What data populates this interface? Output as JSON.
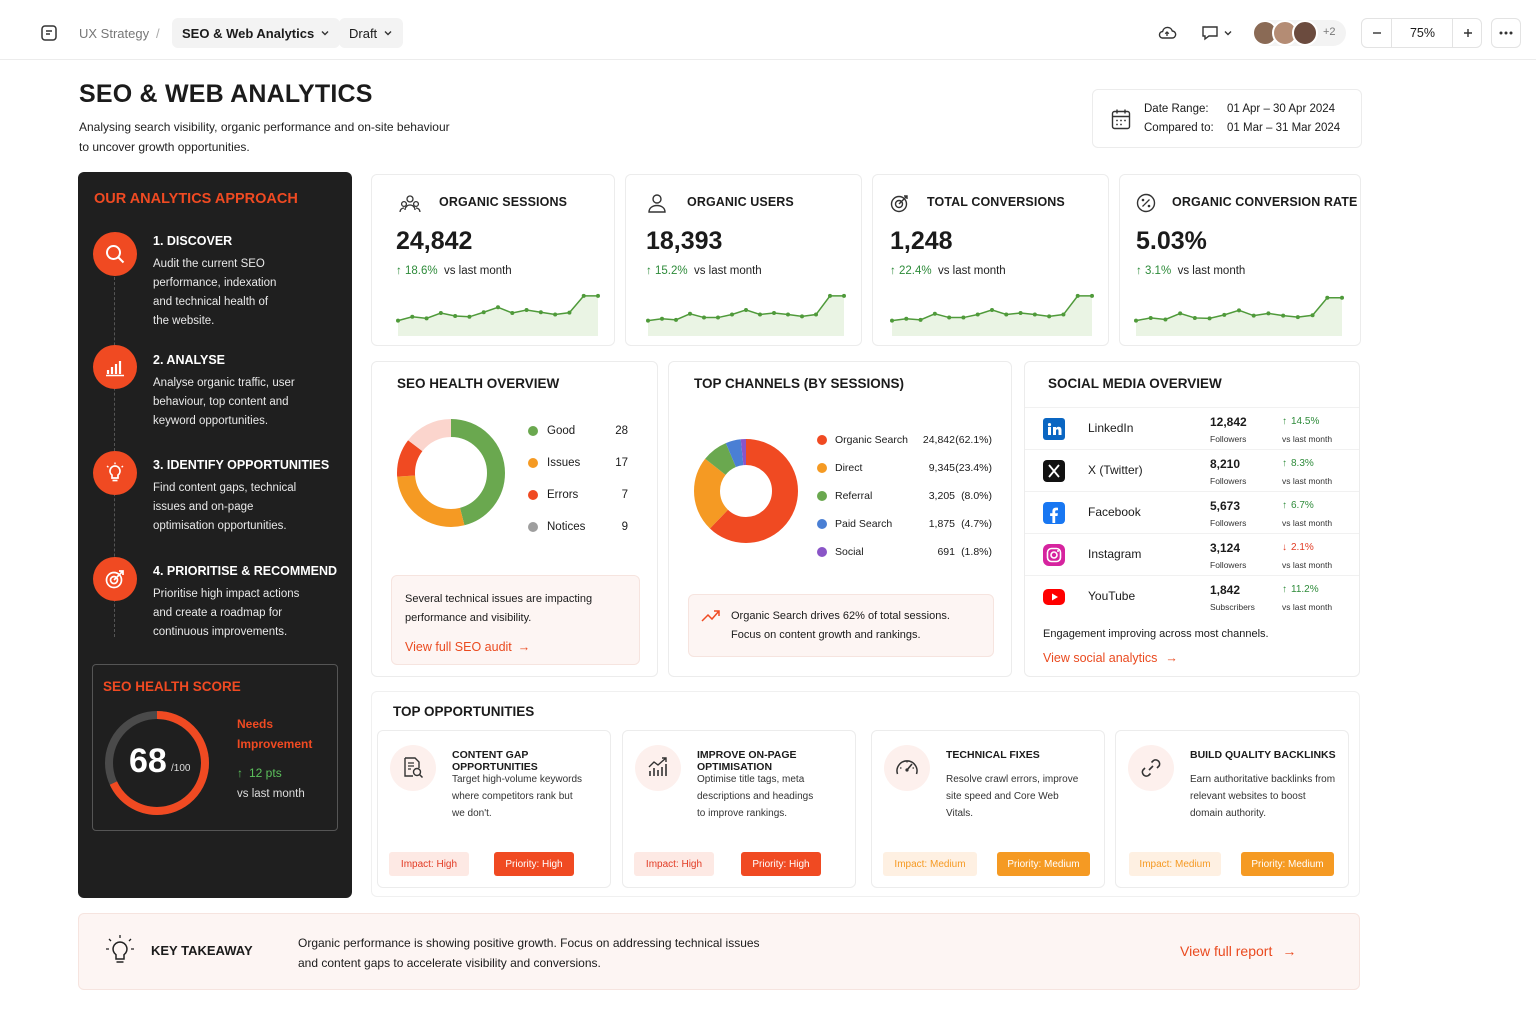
{
  "topbar": {
    "breadcrumb_root": "UX Strategy",
    "breadcrumb_sep": "/",
    "file_name": "SEO & Web Analytics",
    "status": "Draft",
    "extra_users": "+2",
    "zoom": "75%"
  },
  "header": {
    "title": "SEO & WEB ANALYTICS",
    "subtitle_line1": "Analysing search visibility, organic performance and on-site behaviour",
    "subtitle_line2": "to uncover growth opportunities.",
    "date_range_label": "Date Range:",
    "date_range_value": "01 Apr – 30 Apr 2024",
    "compared_label": "Compared to:",
    "compared_value": "01 Mar – 31 Mar 2024"
  },
  "approach": {
    "title": "OUR ANALYTICS APPROACH",
    "steps": [
      {
        "title": "1. DISCOVER",
        "lines": [
          "Audit the current SEO",
          "performance, indexation",
          "and technical health of",
          "the website."
        ]
      },
      {
        "title": "2. ANALYSE",
        "lines": [
          "Analyse organic traffic, user",
          "behaviour, top content and",
          "keyword opportunities."
        ]
      },
      {
        "title": "3. IDENTIFY OPPORTUNITIES",
        "lines": [
          "Find content gaps, technical",
          "issues and on-page",
          "optimisation opportunities."
        ]
      },
      {
        "title": "4. PRIORITISE & RECOMMEND",
        "lines": [
          "Prioritise high impact actions",
          "and create a roadmap for",
          "continuous improvements."
        ]
      }
    ],
    "health": {
      "title": "SEO HEALTH SCORE",
      "score": "68",
      "score_max": "/100",
      "score_fraction": 0.68,
      "status_line1": "Needs",
      "status_line2": "Improvement",
      "change": "12 pts",
      "change_label": "vs last month"
    }
  },
  "kpis": [
    {
      "title": "ORGANIC SESSIONS",
      "value": "24,842",
      "change": "18.6%",
      "label": "vs last month",
      "spark": [
        3,
        4,
        3.6,
        5,
        4.2,
        4,
        5.2,
        6.5,
        5,
        5.8,
        5.2,
        4.6,
        5.1,
        9.5,
        9.5
      ]
    },
    {
      "title": "ORGANIC USERS",
      "value": "18,393",
      "change": "15.2%",
      "label": "vs last month",
      "spark": [
        3,
        3.5,
        3.2,
        4.8,
        3.8,
        3.8,
        4.6,
        5.8,
        4.6,
        5,
        4.6,
        4.1,
        4.6,
        9.5,
        9.5
      ]
    },
    {
      "title": "TOTAL CONVERSIONS",
      "value": "1,248",
      "change": "22.4%",
      "label": "vs last month",
      "spark": [
        3,
        3.5,
        3.2,
        4.8,
        3.8,
        3.8,
        4.6,
        5.8,
        4.6,
        5,
        4.6,
        4.1,
        4.6,
        9.5,
        9.5
      ]
    },
    {
      "title": "ORGANIC CONVERSION RATE",
      "value": "5.03%",
      "change": "3.1%",
      "label": "vs last month",
      "spark": [
        3,
        3.7,
        3.3,
        4.9,
        3.7,
        3.6,
        4.5,
        5.7,
        4.3,
        4.9,
        4.3,
        3.9,
        4.4,
        9,
        9
      ]
    }
  ],
  "seo_health": {
    "title": "SEO HEALTH OVERVIEW",
    "items": [
      {
        "label": "Good",
        "value": 28,
        "color": "#6aa84f"
      },
      {
        "label": "Issues",
        "value": 17,
        "color": "#f59a23"
      },
      {
        "label": "Errors",
        "value": 7,
        "color": "#f04a22"
      },
      {
        "label": "Notices",
        "value": 9,
        "color": "#fbd5cd"
      }
    ],
    "note_line1": "Several technical issues are impacting",
    "note_line2": "performance and visibility.",
    "link": "View full SEO audit"
  },
  "channels": {
    "title": "TOP CHANNELS (BY SESSIONS)",
    "items": [
      {
        "label": "Organic Search",
        "value": "24,842",
        "pct": "(62.1%)",
        "share": 62.1,
        "color": "#f04a22"
      },
      {
        "label": "Direct",
        "value": "9,345",
        "pct": "(23.4%)",
        "share": 23.4,
        "color": "#f59a23"
      },
      {
        "label": "Referral",
        "value": "3,205",
        "pct": "(8.0%)",
        "share": 8.0,
        "color": "#6aa84f"
      },
      {
        "label": "Paid Search",
        "value": "1,875",
        "pct": "(4.7%)",
        "share": 4.7,
        "color": "#4a7fd4"
      },
      {
        "label": "Social",
        "value": "691",
        "pct": "(1.8%)",
        "share": 1.8,
        "color": "#8a55c7"
      }
    ],
    "note_line1": "Organic Search drives 62% of total sessions.",
    "note_line2": "Focus on content growth and rankings."
  },
  "social": {
    "title": "SOCIAL MEDIA OVERVIEW",
    "items": [
      {
        "name": "LinkedIn",
        "count": "12,842",
        "unit": "Followers",
        "change": "14.5%",
        "dir": "up",
        "label": "vs last month",
        "icon": "linkedin-icon",
        "color": "#0a66c2"
      },
      {
        "name": "X (Twitter)",
        "count": "8,210",
        "unit": "Followers",
        "change": "8.3%",
        "dir": "up",
        "label": "vs last month",
        "icon": "x-icon",
        "color": "#111111"
      },
      {
        "name": "Facebook",
        "count": "5,673",
        "unit": "Followers",
        "change": "6.7%",
        "dir": "up",
        "label": "vs last month",
        "icon": "facebook-icon",
        "color": "#1877f2"
      },
      {
        "name": "Instagram",
        "count": "3,124",
        "unit": "Followers",
        "change": "2.1%",
        "dir": "down",
        "label": "vs last month",
        "icon": "instagram-icon",
        "color": "#d6249f"
      },
      {
        "name": "YouTube",
        "count": "1,842",
        "unit": "Subscribers",
        "change": "11.2%",
        "dir": "up",
        "label": "vs last month",
        "icon": "youtube-icon",
        "color": "#ff0000"
      }
    ],
    "note": "Engagement improving across most channels.",
    "link": "View social analytics"
  },
  "opportunities": {
    "title": "TOP OPPORTUNITIES",
    "items": [
      {
        "title": "CONTENT GAP OPPORTUNITIES",
        "lines": [
          "Target high-volume keywords",
          "where competitors rank but",
          "we don't."
        ],
        "impact": "Impact: High",
        "priority": "Priority: High",
        "level": "high"
      },
      {
        "title": "IMPROVE ON-PAGE OPTIMISATION",
        "lines": [
          "Optimise title tags, meta",
          "descriptions and headings",
          "to improve rankings."
        ],
        "impact": "Impact: High",
        "priority": "Priority: High",
        "level": "high"
      },
      {
        "title": "TECHNICAL FIXES",
        "lines": [
          "Resolve crawl errors, improve",
          "site speed and Core Web",
          "Vitals."
        ],
        "impact": "Impact: Medium",
        "priority": "Priority: Medium",
        "level": "medium"
      },
      {
        "title": "BUILD QUALITY BACKLINKS",
        "lines": [
          "Earn authoritative backlinks from",
          "relevant websites to boost",
          "domain authority."
        ],
        "impact": "Impact: Medium",
        "priority": "Priority: Medium",
        "level": "medium"
      }
    ]
  },
  "takeaway": {
    "title": "KEY TAKEAWAY",
    "line1": "Organic performance is showing positive growth. Focus on addressing technical issues",
    "line2": "and content gaps to accelerate visibility and conversions.",
    "link": "View full report"
  },
  "colors": {
    "accent": "#f04a22",
    "positive": "#2e8b3a",
    "negative": "#e23b24",
    "spark": "#4f9a3a"
  }
}
